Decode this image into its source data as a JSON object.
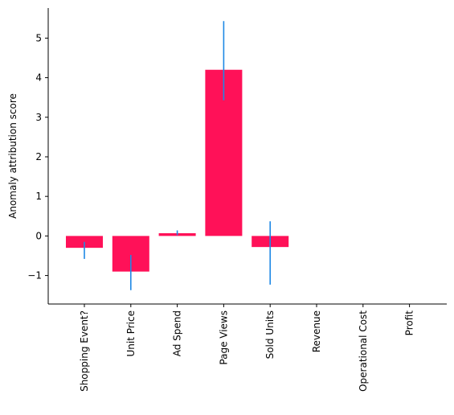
{
  "chart_data": {
    "type": "bar",
    "categories": [
      "Shopping Event?",
      "Unit Price",
      "Ad Spend",
      "Page Views",
      "Sold Units",
      "Revenue",
      "Operational Cost",
      "Profit"
    ],
    "values": [
      -0.3,
      -0.9,
      0.07,
      4.2,
      -0.28,
      0,
      0,
      0
    ],
    "error_low": [
      -0.58,
      -1.37,
      0.02,
      3.43,
      -1.23,
      null,
      null,
      null
    ],
    "error_high": [
      -0.15,
      -0.48,
      0.14,
      5.43,
      0.37,
      null,
      null,
      null
    ],
    "ylabel": "Anomaly attribution score",
    "xlabel": "",
    "ylim": [
      -1.72,
      5.76
    ],
    "yticks": [
      -1,
      0,
      1,
      2,
      3,
      4,
      5
    ],
    "ytick_labels": [
      "−1",
      "0",
      "1",
      "2",
      "3",
      "4",
      "5"
    ],
    "grid": false,
    "colors": {
      "bar": "#ff1158",
      "error": "#1e88e5",
      "axis": "#000000"
    }
  }
}
